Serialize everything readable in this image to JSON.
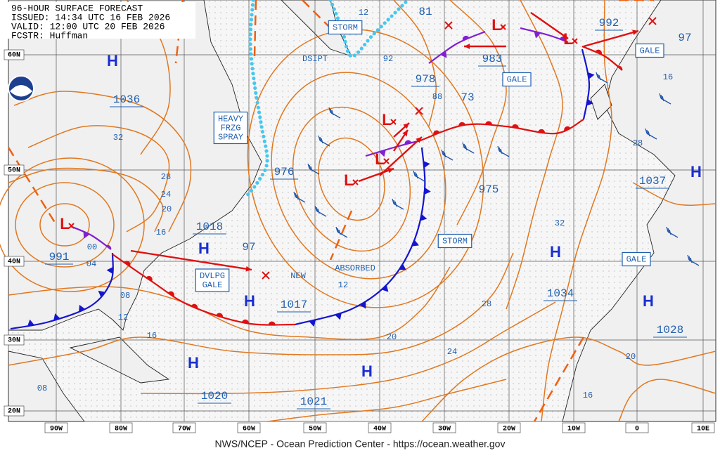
{
  "header": {
    "title": "96-HOUR SURFACE FORECAST",
    "issued": "ISSUED: 14:34 UTC 16 FEB 2026",
    "valid": "VALID: 12:00 UTC 20 FEB 2026",
    "forecaster": "FCSTR: Huffman"
  },
  "footer": "NWS/NCEP - Ocean Prediction Center - https://ocean.weather.gov",
  "latitude_labels": [
    "60N",
    "50N",
    "40N",
    "30N",
    "20N"
  ],
  "longitude_labels": [
    "90W",
    "80W",
    "70W",
    "60W",
    "50W",
    "40W",
    "30W",
    "20W",
    "10W",
    "0",
    "10E"
  ],
  "highs": [
    {
      "symbol": "H",
      "pressure": "1036"
    },
    {
      "symbol": "H",
      "pressure": "1018"
    },
    {
      "symbol": "H",
      "pressure": "1017"
    },
    {
      "symbol": "H",
      "pressure": "1020"
    },
    {
      "symbol": "H",
      "pressure": "1021"
    },
    {
      "symbol": "H",
      "pressure": "1034"
    },
    {
      "symbol": "H",
      "pressure": "1037"
    },
    {
      "symbol": "H",
      "pressure": "1028"
    }
  ],
  "lows": [
    {
      "symbol": "L",
      "pressure": "991"
    },
    {
      "symbol": "L",
      "pressure": "976"
    },
    {
      "symbol": "L"
    },
    {
      "symbol": "L",
      "pressure": "978"
    },
    {
      "symbol": "L",
      "pressure": "983"
    },
    {
      "symbol": "L",
      "pressure": "992"
    }
  ],
  "pressure_labels": [
    "97",
    "73",
    "81",
    "97",
    "975"
  ],
  "boxed_labels": [
    [
      "STORM"
    ],
    [
      "HEAVY",
      "FRZG",
      "SPRAY"
    ],
    [
      "DVLPG",
      "GALE"
    ],
    [
      "STORM"
    ],
    [
      "GALE"
    ],
    [
      "GALE"
    ],
    [
      "GALE"
    ]
  ],
  "plain_labels": [
    "DSIPT",
    "NEW",
    "ABSORBED"
  ],
  "isobar_labels": [
    "12",
    "92",
    "88",
    "16",
    "32",
    "28",
    "24",
    "20",
    "16",
    "00",
    "04",
    "08",
    "12",
    "16",
    "08",
    "12",
    "28",
    "32",
    "28",
    "20",
    "24",
    "20",
    "16"
  ]
}
